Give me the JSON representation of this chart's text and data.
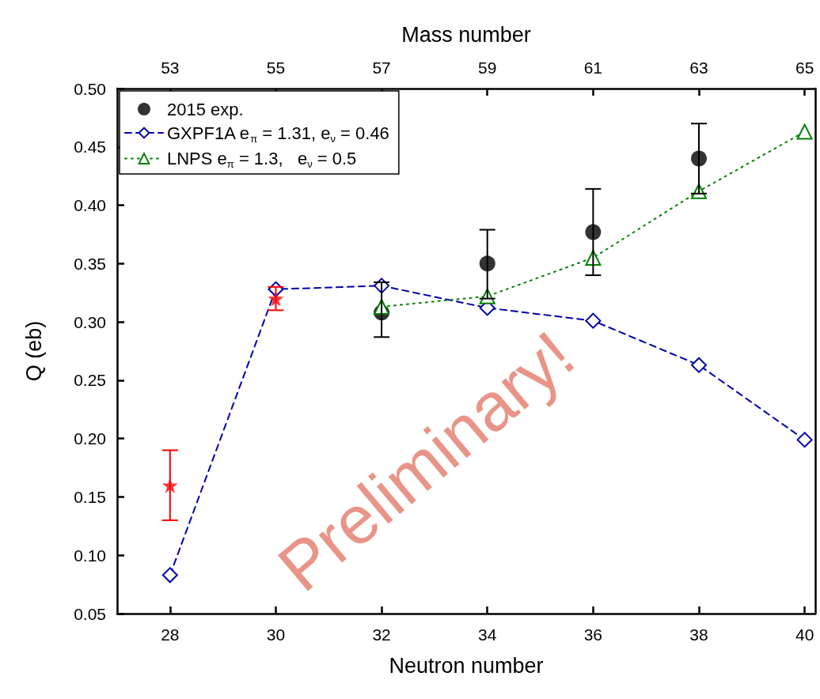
{
  "chart_data": {
    "type": "scatter",
    "xlabel": "Neutron number",
    "x2label": "Mass number",
    "ylabel": "Q (eb)",
    "xlim": [
      27,
      40.2
    ],
    "xticks": [
      28,
      30,
      32,
      34,
      36,
      38,
      40
    ],
    "x2lim": [
      52,
      65.2
    ],
    "x2ticks": [
      53,
      55,
      57,
      59,
      61,
      63,
      65
    ],
    "ylim": [
      0.05,
      0.5
    ],
    "yticks": [
      0.05,
      {
        "value": 0.1,
        "label": "0.10"
      },
      0.15,
      {
        "value": 0.2,
        "label": "0.20"
      },
      0.25,
      {
        "value": 0.3,
        "label": "0.30"
      },
      0.35,
      {
        "value": 0.4,
        "label": "0.40"
      },
      0.45,
      {
        "value": 0.5,
        "label": "0.50"
      }
    ],
    "grid": false,
    "legend": "top left",
    "annotations": [
      "Preliminary!"
    ],
    "series": [
      {
        "name": "2015 exp.",
        "marker": "circle",
        "color": "#000000",
        "x": [
          32,
          34,
          36,
          38
        ],
        "values": [
          0.308,
          0.35,
          0.377,
          0.44
        ],
        "errors": [
          [
            0.287,
            0.334
          ],
          [
            0.32,
            0.379
          ],
          [
            0.34,
            0.414
          ],
          [
            0.41,
            0.47
          ]
        ]
      },
      {
        "name": "GXPF1A e$_{π}$ = 1.31, e$_{ν}$ = 0.46",
        "type": "line",
        "marker": "diamond",
        "line_style": "dashed",
        "color": "#0000aa",
        "x": [
          28,
          30,
          32,
          34,
          36,
          38,
          40
        ],
        "values": [
          0.083,
          0.328,
          0.331,
          0.312,
          0.301,
          0.263,
          0.199
        ]
      },
      {
        "name": "LNPS e$_{π}$ = 1.3,   e$_{ν}$ = 0.5",
        "type": "line",
        "marker": "triangle",
        "line_style": "dotted",
        "color": "#008000",
        "x": [
          32,
          34,
          36,
          38,
          40
        ],
        "values": [
          0.313,
          0.322,
          0.355,
          0.412,
          0.463
        ]
      },
      {
        "marker": "star",
        "color": "#ff0000",
        "x": [
          28,
          30
        ],
        "values": [
          0.16,
          0.32
        ],
        "errors": [
          [
            0.13,
            0.19
          ],
          [
            0.31,
            0.33
          ]
        ]
      }
    ]
  }
}
